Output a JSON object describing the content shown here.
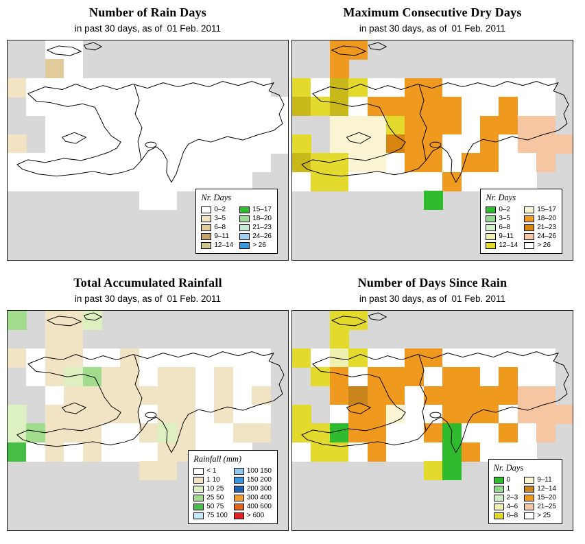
{
  "page": {
    "background": "#ffffff",
    "map_background": "#d8d8d8"
  },
  "panels": [
    {
      "title": "Number of Rain Days",
      "subtitle_prefix": "in past 30 days, as of",
      "subtitle_date": "01 Feb. 2011",
      "legend": {
        "title": "Nr. Days",
        "columns": [
          [
            {
              "label": "0–2",
              "color": "#ffffff"
            },
            {
              "label": "3–5",
              "color": "#f2e3c3"
            },
            {
              "label": "6–8",
              "color": "#e2cb9a"
            },
            {
              "label": "9–11",
              "color": "#c7a468"
            },
            {
              "label": "12–14",
              "color": "#cdc98e"
            }
          ],
          [
            {
              "label": "15–17",
              "color": "#2ebc2e"
            },
            {
              "label": "18–20",
              "color": "#9ade96"
            },
            {
              "label": "21–23",
              "color": "#c6ebd4"
            },
            {
              "label": "24–26",
              "color": "#9fd0ee"
            },
            {
              "label": "> 26",
              "color": "#3b99de"
            }
          ]
        ]
      },
      "grid": {
        "palette": {
          "W": "#ffffff",
          "a": "#f2e3c3",
          "b": "#e2cb9a"
        },
        "rows": [
          "..WW...........",
          "..bW...........",
          "aWWWWWWWWWWWWW.",
          ".WWWWWWWWWWWWWW",
          "..WWWWWWWWWWWWW",
          "a.WWWWWWWWWWWWW",
          "WWWWWWWWWWWWWW.",
          "WWWWWWWWWWWWW..",
          ".......WW......"
        ]
      }
    },
    {
      "title": "Maximum Consecutive Dry Days",
      "subtitle_prefix": "in past 30 days, as of",
      "subtitle_date": "01 Feb. 2011",
      "legend": {
        "title": "Nr. Days",
        "columns": [
          [
            {
              "label": "0–2",
              "color": "#2ebc2e"
            },
            {
              "label": "3–5",
              "color": "#90dc8c"
            },
            {
              "label": "6–8",
              "color": "#d4f0ca"
            },
            {
              "label": "9–11",
              "color": "#eef0ae"
            },
            {
              "label": "12–14",
              "color": "#e4da2e"
            }
          ],
          [
            {
              "label": "15–17",
              "color": "#faf4d2"
            },
            {
              "label": "18–20",
              "color": "#ef9a1e"
            },
            {
              "label": "21–23",
              "color": "#d88410"
            },
            {
              "label": "24–26",
              "color": "#f6c5a2"
            },
            {
              "label": "> 26",
              "color": "#ffffff"
            }
          ]
        ]
      },
      "grid": {
        "palette": {
          "W": "#ffffff",
          "Y": "#e4da2e",
          "d": "#c9b81a",
          "C": "#faf4d2",
          "O": "#ef9a1e",
          "D": "#d88410",
          "S": "#f6c5a2",
          "e": "#2ebc2e"
        },
        "rows": [
          "..OO...........",
          "..O............",
          "YWdYWWOOWWWWWW.",
          "dYdWOOOOOWWOWW.",
          "..CCCYOOOWOOSS.",
          "Y.CCCDOOWWOWSSS",
          "dYYCCWOOWOOWWS.",
          "WYYWWWWWOWWWW..",
          ".......e......."
        ]
      }
    },
    {
      "title": "Total Accumulated Rainfall",
      "subtitle_prefix": "in past 30 days, as of",
      "subtitle_date": "01 Feb. 2011",
      "legend": {
        "title": "Rainfall (mm)",
        "columns": [
          [
            {
              "label": "< 1",
              "color": "#ffffff"
            },
            {
              "label": "1 10",
              "color": "#f0e4c4"
            },
            {
              "label": "10 25",
              "color": "#dcf0c0"
            },
            {
              "label": "25 50",
              "color": "#a0dc8c"
            },
            {
              "label": "50 75",
              "color": "#46be46"
            },
            {
              "label": "75 100",
              "color": "#c6e8f6"
            }
          ],
          [
            {
              "label": "100 150",
              "color": "#8cc8ee"
            },
            {
              "label": "150 200",
              "color": "#3c96dc"
            },
            {
              "label": "200 300",
              "color": "#1c64b4"
            },
            {
              "label": "300 400",
              "color": "#f0a02c"
            },
            {
              "label": "400 600",
              "color": "#e06414"
            },
            {
              "label": "> 600",
              "color": "#e02020"
            }
          ]
        ]
      },
      "grid": {
        "palette": {
          "W": "#ffffff",
          "a": "#f0e4c4",
          "P": "#dcf0c0",
          "G": "#a0dc8c",
          "E": "#46be46"
        },
        "rows": [
          "G.aaP..........",
          "..aa...........",
          "aWaaWWaWWWWWWW.",
          ".WaPGaaWaaWaWW.",
          "..WaaaaaaaWaWa.",
          "P.aaaaaWaaWaWW.",
          "PGaaaWWaPaWWaa.",
          "EWaWaWWWaaWWW..",
          ".......aa......"
        ]
      }
    },
    {
      "title": "Number of Days Since Rain",
      "subtitle_prefix": "in past 30 days, as of",
      "subtitle_date": "01 Feb. 2011",
      "legend": {
        "title": "Nr. Days",
        "columns": [
          [
            {
              "label": "0",
              "color": "#2ebc2e"
            },
            {
              "label": "1",
              "color": "#90dc8c"
            },
            {
              "label": "2–3",
              "color": "#d4f0ca"
            },
            {
              "label": "4–6",
              "color": "#eef0ae"
            },
            {
              "label": "6–8",
              "color": "#e4da2e"
            }
          ],
          [
            {
              "label": "9–11",
              "color": "#faf4d2"
            },
            {
              "label": "12–14",
              "color": "#c9841c"
            },
            {
              "label": "15–20",
              "color": "#ef9a1e"
            },
            {
              "label": "21–25",
              "color": "#f6c5a2"
            },
            {
              "label": "> 25",
              "color": "#ffffff"
            }
          ]
        ]
      },
      "grid": {
        "palette": {
          "W": "#ffffff",
          "Y": "#e4da2e",
          "y": "#eef0ae",
          "C": "#faf4d2",
          "O": "#ef9a1e",
          "B": "#c9841c",
          "S": "#f6c5a2",
          "e": "#2ebc2e"
        },
        "rows": [
          "..YY...........",
          "..Y............",
          "YWyYWWOOWWWWWW.",
          ".YOWOOOWOOWOWW.",
          "..OBOOWOOOOOSS.",
          "Y.WOOCWWOOOWSSS",
          "YYeOOWWOeWWOWS.",
          "WYYWOWWWeOWWW..",
          ".......Ye......"
        ]
      }
    }
  ]
}
